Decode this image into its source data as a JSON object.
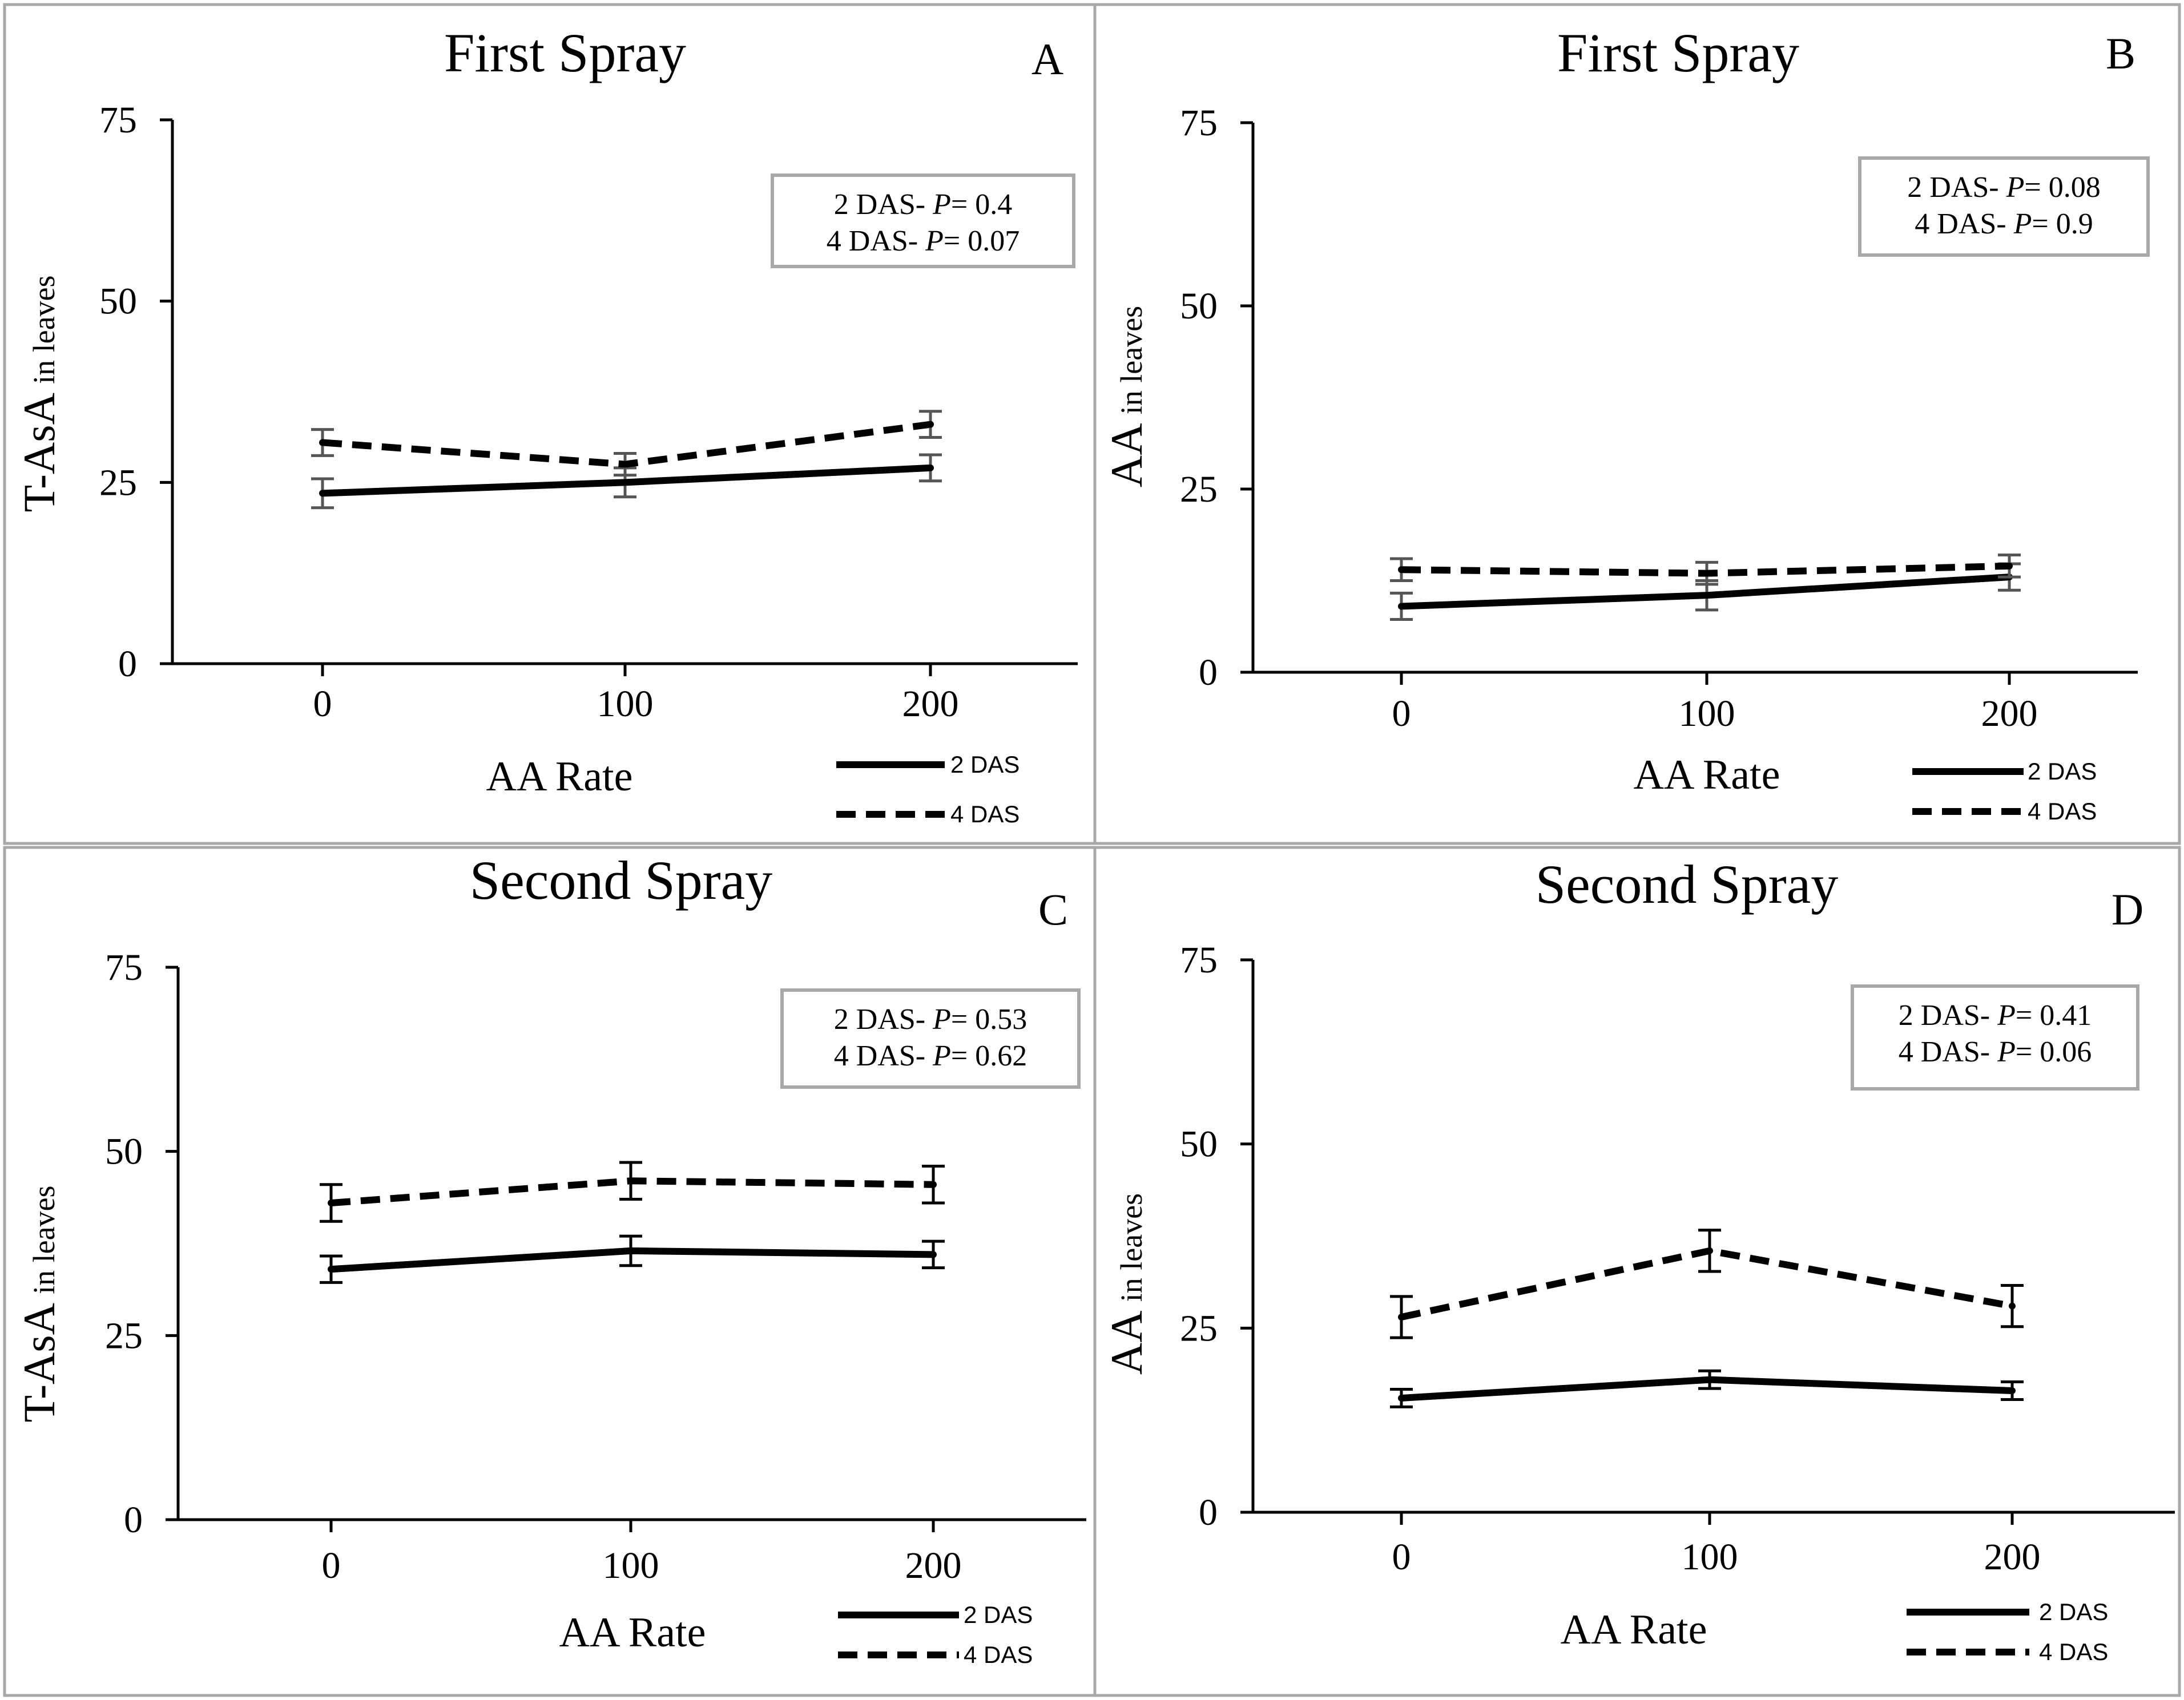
{
  "chart_data": [
    {
      "type": "line",
      "panel": "A",
      "title": "First Spray",
      "xlabel": "AA Rate",
      "ylabel_main": "T-AsA",
      "ylabel_sub": "in leaves",
      "categories": [
        "0",
        "100",
        "200"
      ],
      "ylim": [
        0,
        75
      ],
      "yticks": [
        "0",
        "25",
        "50",
        "75"
      ],
      "series": [
        {
          "name": "2 DAS",
          "values": [
            23.5,
            25.0,
            27.0
          ],
          "errors": [
            2.0,
            2.0,
            1.8
          ]
        },
        {
          "name": "4 DAS",
          "values": [
            30.5,
            27.5,
            33.0
          ],
          "errors": [
            1.8,
            1.5,
            1.8
          ]
        }
      ],
      "stats": [
        {
          "label": "2 DAS- ",
          "p": "P",
          "value": "= 0.4"
        },
        {
          "label": "4 DAS- ",
          "p": "P",
          "value": "= 0.07"
        }
      ],
      "grid": false,
      "legend": "bottom-right"
    },
    {
      "type": "line",
      "panel": "B",
      "title": "First Spray",
      "xlabel": "AA Rate",
      "ylabel_main": "AA",
      "ylabel_sub": "in leaves",
      "categories": [
        "0",
        "100",
        "200"
      ],
      "ylim": [
        0,
        75
      ],
      "yticks": [
        "0",
        "25",
        "50",
        "75"
      ],
      "series": [
        {
          "name": "2 DAS",
          "values": [
            9.0,
            10.5,
            13.0
          ],
          "errors": [
            1.8,
            2.0,
            1.8
          ]
        },
        {
          "name": "4 DAS",
          "values": [
            14.0,
            13.5,
            14.5
          ],
          "errors": [
            1.5,
            1.5,
            1.5
          ]
        }
      ],
      "stats": [
        {
          "label": "2 DAS- ",
          "p": "P",
          "value": "= 0.08"
        },
        {
          "label": "4 DAS- ",
          "p": "P",
          "value": "= 0.9"
        }
      ],
      "grid": false,
      "legend": "bottom-right"
    },
    {
      "type": "line",
      "panel": "C",
      "title": "Second Spray",
      "xlabel": "AA Rate",
      "ylabel_main": "T-AsA",
      "ylabel_sub": "in leaves",
      "categories": [
        "0",
        "100",
        "200"
      ],
      "ylim": [
        0,
        75
      ],
      "yticks": [
        "0",
        "25",
        "50",
        "75"
      ],
      "series": [
        {
          "name": "2 DAS",
          "values": [
            34.0,
            36.5,
            36.0
          ],
          "errors": [
            1.8,
            2.0,
            1.8
          ]
        },
        {
          "name": "4 DAS",
          "values": [
            43.0,
            46.0,
            45.5
          ],
          "errors": [
            2.5,
            2.5,
            2.5
          ]
        }
      ],
      "stats": [
        {
          "label": "2 DAS- ",
          "p": "P",
          "value": "= 0.53"
        },
        {
          "label": "4 DAS- ",
          "p": "P",
          "value": "= 0.62"
        }
      ],
      "grid": false,
      "legend": "bottom-right"
    },
    {
      "type": "line",
      "panel": "D",
      "title": "Second Spray",
      "xlabel": "AA Rate",
      "ylabel_main": "AA",
      "ylabel_sub": "in leaves",
      "categories": [
        "0",
        "100",
        "200"
      ],
      "ylim": [
        0,
        75
      ],
      "yticks": [
        "0",
        "25",
        "50",
        "75"
      ],
      "series": [
        {
          "name": "2 DAS",
          "values": [
            15.5,
            18.0,
            16.5
          ],
          "errors": [
            1.2,
            1.2,
            1.2
          ]
        },
        {
          "name": "4 DAS",
          "values": [
            26.5,
            35.5,
            28.0
          ],
          "errors": [
            2.8,
            2.8,
            2.8
          ]
        }
      ],
      "stats": [
        {
          "label": "2 DAS- ",
          "p": "P",
          "value": "= 0.41"
        },
        {
          "label": "4 DAS- ",
          "p": "P",
          "value": "= 0.06"
        }
      ],
      "grid": false,
      "legend": "bottom-right"
    }
  ],
  "colors": {
    "line": "#000000",
    "error_bar_first_spray": "#555555",
    "error_bar_second_spray": "#000000",
    "panel_border": "#a8a8a8",
    "stats_box_border": "#a8a8a8"
  }
}
